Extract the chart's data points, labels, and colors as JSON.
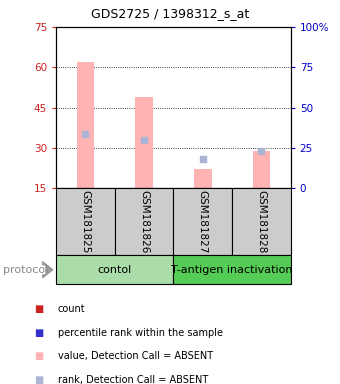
{
  "title": "GDS2725 / 1398312_s_at",
  "samples": [
    "GSM181825",
    "GSM181826",
    "GSM181827",
    "GSM181828"
  ],
  "bar_values": [
    62,
    49,
    22,
    29
  ],
  "rank_values": [
    35,
    33,
    26,
    29
  ],
  "ylim_left": [
    15,
    75
  ],
  "ylim_right": [
    0,
    100
  ],
  "left_ticks": [
    15,
    30,
    45,
    60,
    75
  ],
  "right_ticks": [
    0,
    25,
    50,
    75,
    100
  ],
  "right_tick_labels": [
    "0",
    "25",
    "50",
    "75",
    "100%"
  ],
  "bar_color": "#ffb3b3",
  "rank_color": "#aab4d4",
  "protocol_groups": [
    {
      "label": "contol",
      "samples": [
        0,
        1
      ],
      "color": "#aaddaa"
    },
    {
      "label": "T-antigen inactivation",
      "samples": [
        2,
        3
      ],
      "color": "#55cc55"
    }
  ],
  "legend_items": [
    {
      "color": "#cc2222",
      "label": "count"
    },
    {
      "color": "#3333cc",
      "label": "percentile rank within the sample"
    },
    {
      "color": "#ffb3b3",
      "label": "value, Detection Call = ABSENT"
    },
    {
      "color": "#aab4d4",
      "label": "rank, Detection Call = ABSENT"
    }
  ],
  "protocol_label": "protocol",
  "left_axis_color": "#cc2222",
  "right_axis_color": "#0000cc",
  "sample_bg": "#cccccc",
  "fig_w": 3.4,
  "fig_h": 3.84,
  "dpi": 100
}
